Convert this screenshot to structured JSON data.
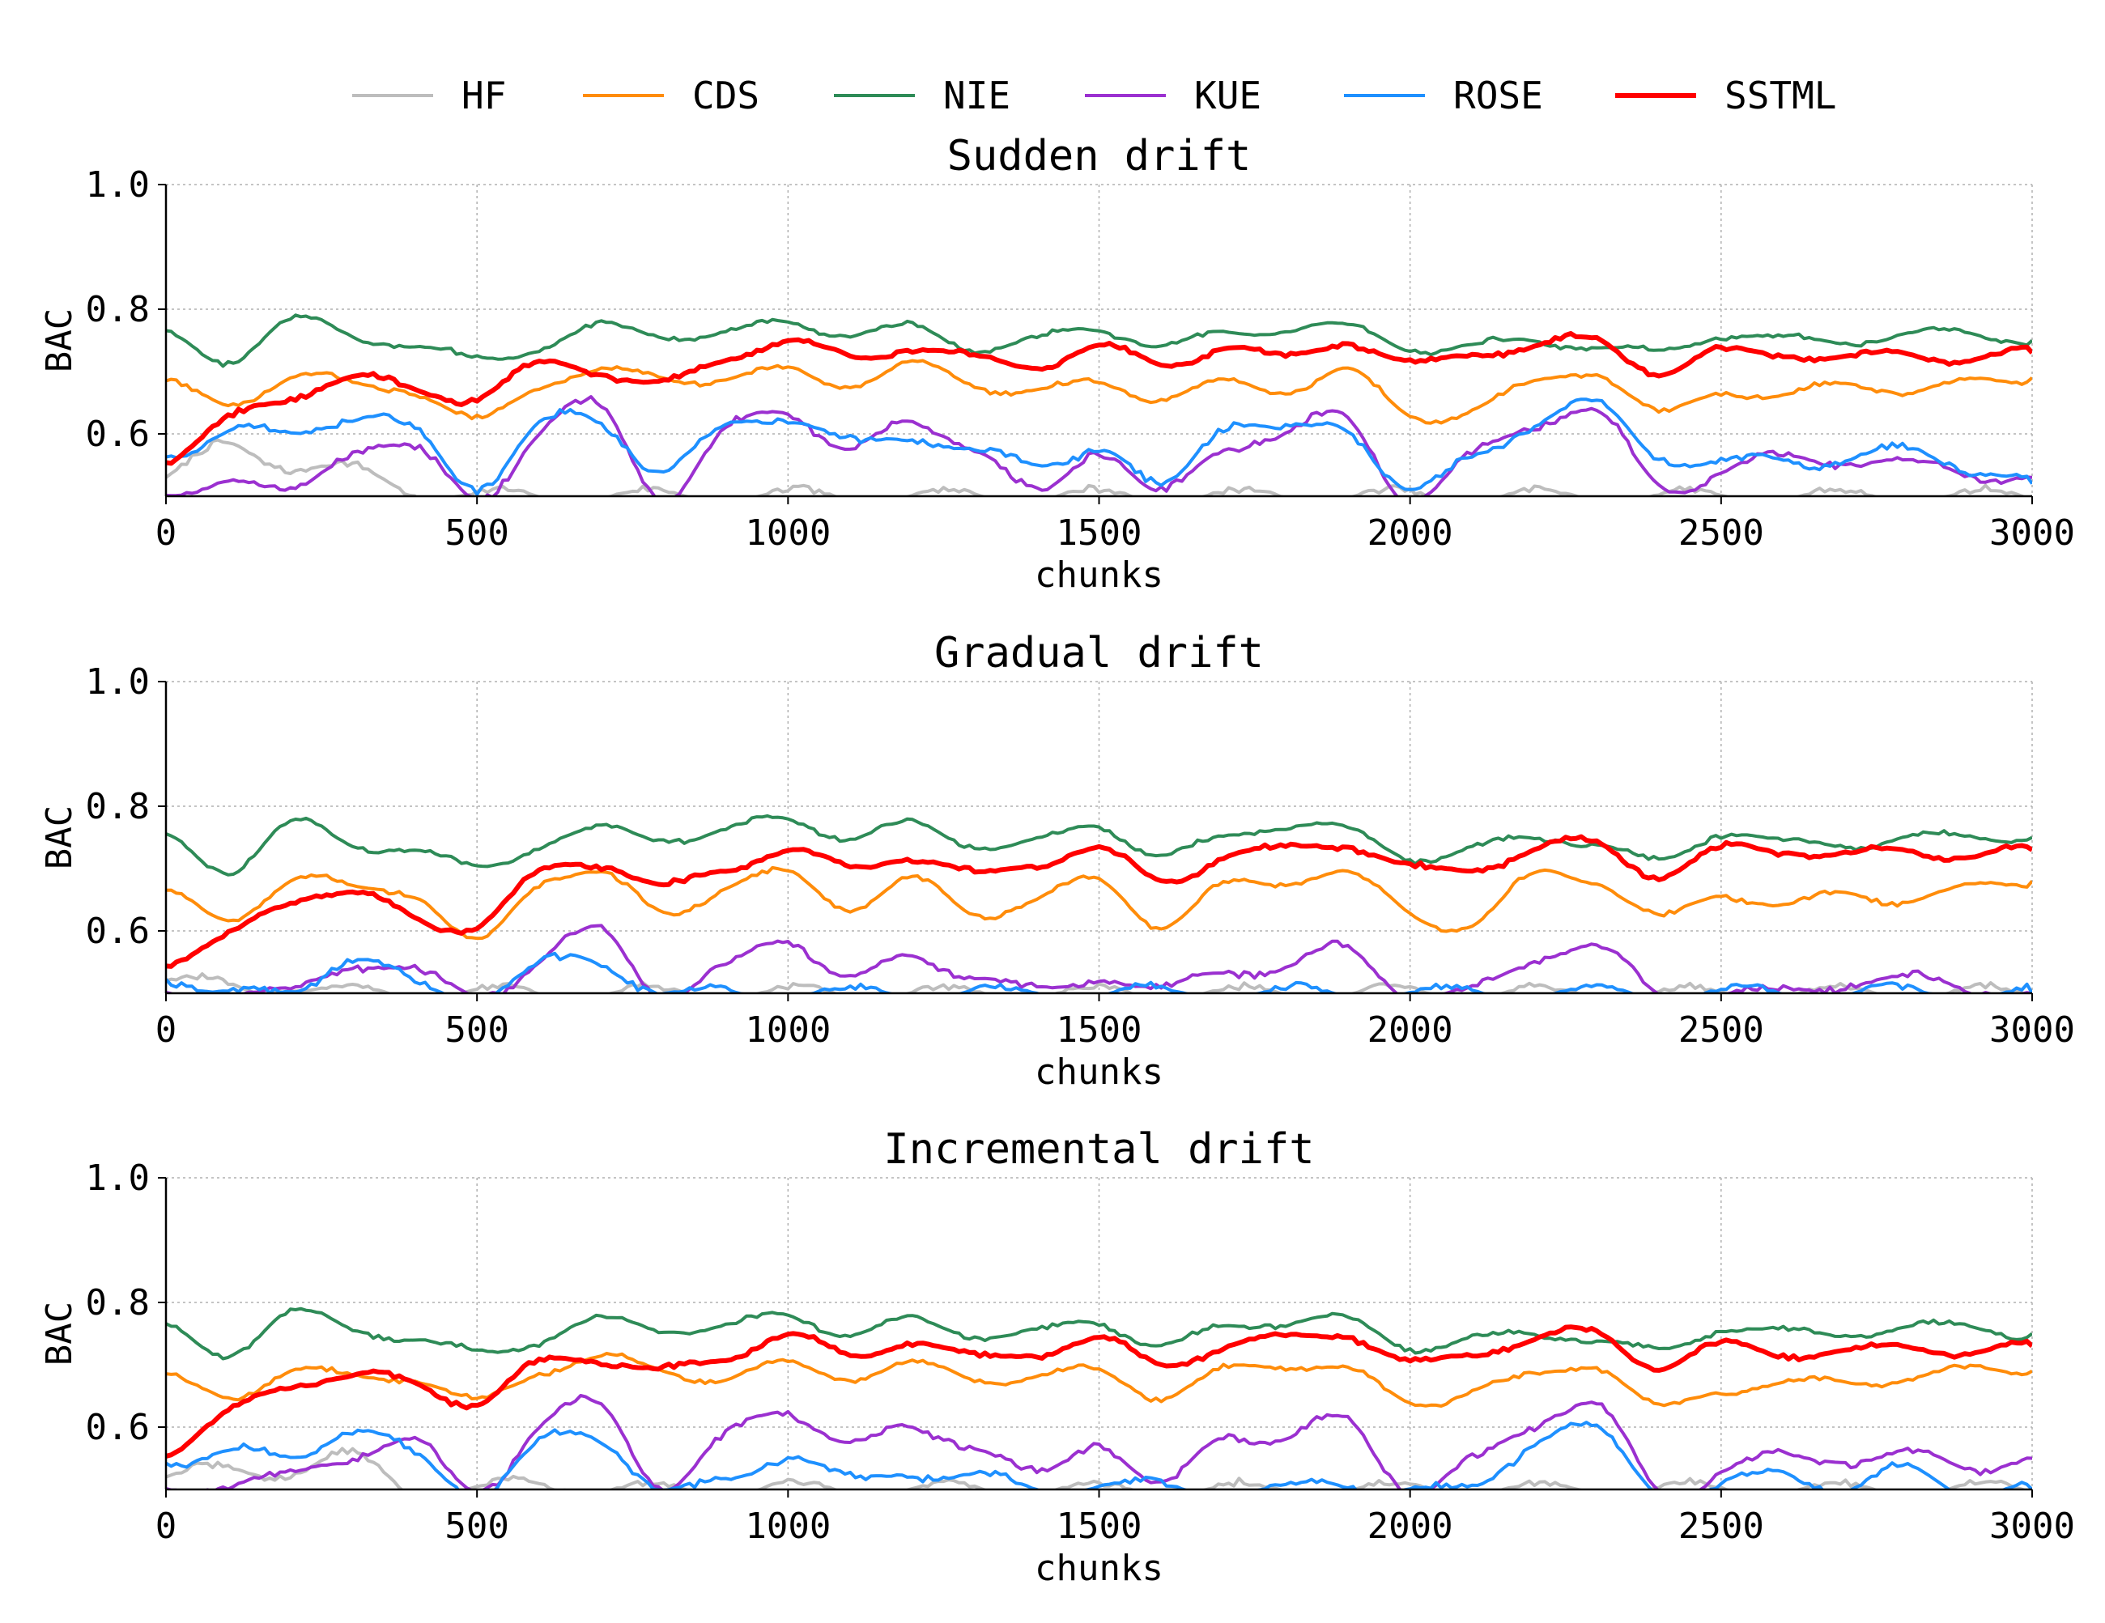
{
  "legend": [
    {
      "name": "HF",
      "color": "#bdbdbd"
    },
    {
      "name": "CDS",
      "color": "#ff8c0a"
    },
    {
      "name": "NIE",
      "color": "#2e8b57"
    },
    {
      "name": "KUE",
      "color": "#9b30d0"
    },
    {
      "name": "ROSE",
      "color": "#1e90ff"
    },
    {
      "name": "SSTML",
      "color": "#ff0000"
    }
  ],
  "chart_data": [
    {
      "type": "line",
      "title": "Sudden drift",
      "xlabel": "chunks",
      "ylabel": "BAC",
      "xlim": [
        0,
        3000
      ],
      "ylim": [
        0.5,
        1.0
      ],
      "xticks": [
        "0",
        "500",
        "1000",
        "1500",
        "2000",
        "2500",
        "3000"
      ],
      "yticks": [
        "0.6",
        "0.8",
        "1.0"
      ],
      "grid": true,
      "x": [
        0,
        100,
        200,
        300,
        400,
        500,
        600,
        700,
        800,
        900,
        1000,
        1100,
        1200,
        1300,
        1400,
        1500,
        1600,
        1700,
        1800,
        1900,
        2000,
        2100,
        2200,
        2300,
        2400,
        2500,
        2600,
        2700,
        2800,
        2900,
        3000
      ],
      "series": [
        {
          "name": "HF",
          "values": [
            0.53,
            0.58,
            0.55,
            0.54,
            0.51,
            0.5,
            0.5,
            0.5,
            0.5,
            0.5,
            0.5,
            0.5,
            0.5,
            0.5,
            0.5,
            0.5,
            0.5,
            0.5,
            0.5,
            0.5,
            0.5,
            0.5,
            0.5,
            0.5,
            0.5,
            0.5,
            0.5,
            0.5,
            0.5,
            0.5,
            0.5
          ]
        },
        {
          "name": "CDS",
          "values": [
            0.68,
            0.65,
            0.69,
            0.68,
            0.67,
            0.62,
            0.68,
            0.7,
            0.69,
            0.69,
            0.7,
            0.68,
            0.71,
            0.68,
            0.67,
            0.68,
            0.66,
            0.68,
            0.67,
            0.7,
            0.63,
            0.64,
            0.68,
            0.7,
            0.63,
            0.67,
            0.66,
            0.68,
            0.67,
            0.68,
            0.69
          ]
        },
        {
          "name": "NIE",
          "values": [
            0.76,
            0.72,
            0.78,
            0.76,
            0.74,
            0.72,
            0.74,
            0.77,
            0.76,
            0.76,
            0.78,
            0.76,
            0.77,
            0.74,
            0.75,
            0.77,
            0.74,
            0.76,
            0.77,
            0.77,
            0.74,
            0.74,
            0.75,
            0.74,
            0.73,
            0.76,
            0.75,
            0.75,
            0.76,
            0.76,
            0.75
          ]
        },
        {
          "name": "KUE",
          "values": [
            0.5,
            0.53,
            0.5,
            0.58,
            0.57,
            0.5,
            0.6,
            0.64,
            0.5,
            0.6,
            0.64,
            0.57,
            0.62,
            0.58,
            0.5,
            0.58,
            0.5,
            0.58,
            0.6,
            0.62,
            0.5,
            0.56,
            0.62,
            0.63,
            0.52,
            0.54,
            0.56,
            0.56,
            0.55,
            0.54,
            0.53
          ]
        },
        {
          "name": "ROSE",
          "values": [
            0.57,
            0.6,
            0.6,
            0.63,
            0.6,
            0.52,
            0.61,
            0.62,
            0.54,
            0.61,
            0.63,
            0.58,
            0.6,
            0.57,
            0.55,
            0.58,
            0.51,
            0.62,
            0.6,
            0.61,
            0.51,
            0.56,
            0.62,
            0.64,
            0.57,
            0.55,
            0.56,
            0.56,
            0.57,
            0.55,
            0.52
          ]
        },
        {
          "name": "SSTML",
          "values": [
            0.56,
            0.62,
            0.66,
            0.69,
            0.67,
            0.66,
            0.71,
            0.7,
            0.68,
            0.72,
            0.75,
            0.72,
            0.74,
            0.72,
            0.71,
            0.74,
            0.71,
            0.74,
            0.72,
            0.75,
            0.71,
            0.73,
            0.74,
            0.75,
            0.7,
            0.73,
            0.73,
            0.72,
            0.73,
            0.72,
            0.73
          ]
        }
      ]
    },
    {
      "type": "line",
      "title": "Gradual drift",
      "xlabel": "chunks",
      "ylabel": "BAC",
      "xlim": [
        0,
        3000
      ],
      "ylim": [
        0.5,
        1.0
      ],
      "xticks": [
        "0",
        "500",
        "1000",
        "1500",
        "2000",
        "2500",
        "3000"
      ],
      "yticks": [
        "0.6",
        "0.8",
        "1.0"
      ],
      "grid": true,
      "x": [
        0,
        100,
        200,
        300,
        400,
        500,
        600,
        700,
        800,
        900,
        1000,
        1100,
        1200,
        1300,
        1400,
        1500,
        1600,
        1700,
        1800,
        1900,
        2000,
        2100,
        2200,
        2300,
        2400,
        2500,
        2600,
        2700,
        2800,
        2900,
        3000
      ],
      "series": [
        {
          "name": "HF",
          "values": [
            0.52,
            0.51,
            0.51,
            0.5,
            0.5,
            0.5,
            0.5,
            0.5,
            0.5,
            0.5,
            0.5,
            0.5,
            0.5,
            0.5,
            0.5,
            0.5,
            0.5,
            0.5,
            0.5,
            0.5,
            0.5,
            0.5,
            0.5,
            0.5,
            0.5,
            0.5,
            0.5,
            0.5,
            0.5,
            0.5,
            0.5
          ]
        },
        {
          "name": "CDS",
          "values": [
            0.66,
            0.62,
            0.68,
            0.67,
            0.66,
            0.58,
            0.68,
            0.69,
            0.63,
            0.67,
            0.69,
            0.64,
            0.68,
            0.63,
            0.65,
            0.68,
            0.61,
            0.67,
            0.68,
            0.69,
            0.63,
            0.61,
            0.69,
            0.68,
            0.62,
            0.66,
            0.64,
            0.66,
            0.65,
            0.67,
            0.68
          ]
        },
        {
          "name": "NIE",
          "values": [
            0.75,
            0.7,
            0.77,
            0.74,
            0.73,
            0.7,
            0.74,
            0.76,
            0.75,
            0.76,
            0.78,
            0.75,
            0.77,
            0.74,
            0.74,
            0.77,
            0.72,
            0.75,
            0.77,
            0.76,
            0.72,
            0.73,
            0.75,
            0.74,
            0.71,
            0.76,
            0.74,
            0.74,
            0.75,
            0.75,
            0.75
          ]
        },
        {
          "name": "KUE",
          "values": [
            0.5,
            0.5,
            0.5,
            0.55,
            0.53,
            0.5,
            0.55,
            0.6,
            0.5,
            0.54,
            0.59,
            0.52,
            0.56,
            0.53,
            0.5,
            0.53,
            0.5,
            0.54,
            0.54,
            0.57,
            0.5,
            0.5,
            0.56,
            0.57,
            0.5,
            0.5,
            0.5,
            0.52,
            0.52,
            0.51,
            0.5
          ]
        },
        {
          "name": "ROSE",
          "values": [
            0.53,
            0.5,
            0.5,
            0.56,
            0.51,
            0.5,
            0.54,
            0.55,
            0.5,
            0.5,
            0.5,
            0.5,
            0.5,
            0.5,
            0.5,
            0.5,
            0.5,
            0.5,
            0.5,
            0.5,
            0.5,
            0.5,
            0.5,
            0.5,
            0.5,
            0.5,
            0.5,
            0.5,
            0.5,
            0.5,
            0.5
          ]
        },
        {
          "name": "SSTML",
          "values": [
            0.55,
            0.59,
            0.65,
            0.66,
            0.62,
            0.61,
            0.69,
            0.71,
            0.67,
            0.7,
            0.73,
            0.7,
            0.72,
            0.69,
            0.71,
            0.73,
            0.68,
            0.72,
            0.73,
            0.74,
            0.7,
            0.7,
            0.73,
            0.74,
            0.69,
            0.73,
            0.73,
            0.72,
            0.73,
            0.72,
            0.73
          ]
        }
      ]
    },
    {
      "type": "line",
      "title": "Incremental drift",
      "xlabel": "chunks",
      "ylabel": "BAC",
      "xlim": [
        0,
        3000
      ],
      "ylim": [
        0.5,
        1.0
      ],
      "xticks": [
        "0",
        "500",
        "1000",
        "1500",
        "2000",
        "2500",
        "3000"
      ],
      "yticks": [
        "0.6",
        "0.8",
        "1.0"
      ],
      "grid": true,
      "x": [
        0,
        100,
        200,
        300,
        400,
        500,
        600,
        700,
        800,
        900,
        1000,
        1100,
        1200,
        1300,
        1400,
        1500,
        1600,
        1700,
        1800,
        1900,
        2000,
        2100,
        2200,
        2300,
        2400,
        2500,
        2600,
        2700,
        2800,
        2900,
        3000
      ],
      "series": [
        {
          "name": "HF",
          "values": [
            0.52,
            0.53,
            0.53,
            0.55,
            0.5,
            0.5,
            0.51,
            0.5,
            0.5,
            0.5,
            0.5,
            0.5,
            0.5,
            0.5,
            0.5,
            0.5,
            0.5,
            0.5,
            0.5,
            0.5,
            0.5,
            0.5,
            0.5,
            0.5,
            0.5,
            0.5,
            0.5,
            0.5,
            0.5,
            0.5,
            0.5
          ]
        },
        {
          "name": "CDS",
          "values": [
            0.68,
            0.65,
            0.69,
            0.68,
            0.68,
            0.64,
            0.69,
            0.71,
            0.69,
            0.68,
            0.7,
            0.68,
            0.7,
            0.68,
            0.68,
            0.69,
            0.65,
            0.69,
            0.7,
            0.69,
            0.64,
            0.66,
            0.68,
            0.7,
            0.63,
            0.66,
            0.67,
            0.67,
            0.68,
            0.69,
            0.69
          ]
        },
        {
          "name": "NIE",
          "values": [
            0.76,
            0.72,
            0.78,
            0.76,
            0.74,
            0.72,
            0.74,
            0.77,
            0.76,
            0.76,
            0.78,
            0.75,
            0.77,
            0.75,
            0.75,
            0.77,
            0.73,
            0.76,
            0.77,
            0.77,
            0.73,
            0.74,
            0.75,
            0.74,
            0.72,
            0.76,
            0.75,
            0.75,
            0.76,
            0.76,
            0.75
          ]
        },
        {
          "name": "KUE",
          "values": [
            0.5,
            0.51,
            0.52,
            0.56,
            0.57,
            0.5,
            0.6,
            0.63,
            0.51,
            0.58,
            0.63,
            0.57,
            0.6,
            0.57,
            0.52,
            0.58,
            0.5,
            0.59,
            0.58,
            0.61,
            0.5,
            0.54,
            0.61,
            0.63,
            0.5,
            0.53,
            0.55,
            0.55,
            0.55,
            0.54,
            0.55
          ]
        },
        {
          "name": "ROSE",
          "values": [
            0.55,
            0.56,
            0.55,
            0.6,
            0.55,
            0.5,
            0.57,
            0.58,
            0.5,
            0.51,
            0.56,
            0.51,
            0.53,
            0.52,
            0.5,
            0.51,
            0.5,
            0.5,
            0.5,
            0.51,
            0.5,
            0.5,
            0.58,
            0.59,
            0.5,
            0.5,
            0.53,
            0.5,
            0.53,
            0.5,
            0.5
          ]
        },
        {
          "name": "SSTML",
          "values": [
            0.56,
            0.62,
            0.67,
            0.68,
            0.67,
            0.64,
            0.7,
            0.71,
            0.69,
            0.71,
            0.75,
            0.71,
            0.74,
            0.71,
            0.72,
            0.74,
            0.7,
            0.73,
            0.74,
            0.75,
            0.7,
            0.72,
            0.74,
            0.75,
            0.7,
            0.73,
            0.72,
            0.72,
            0.73,
            0.72,
            0.73
          ]
        }
      ]
    }
  ]
}
